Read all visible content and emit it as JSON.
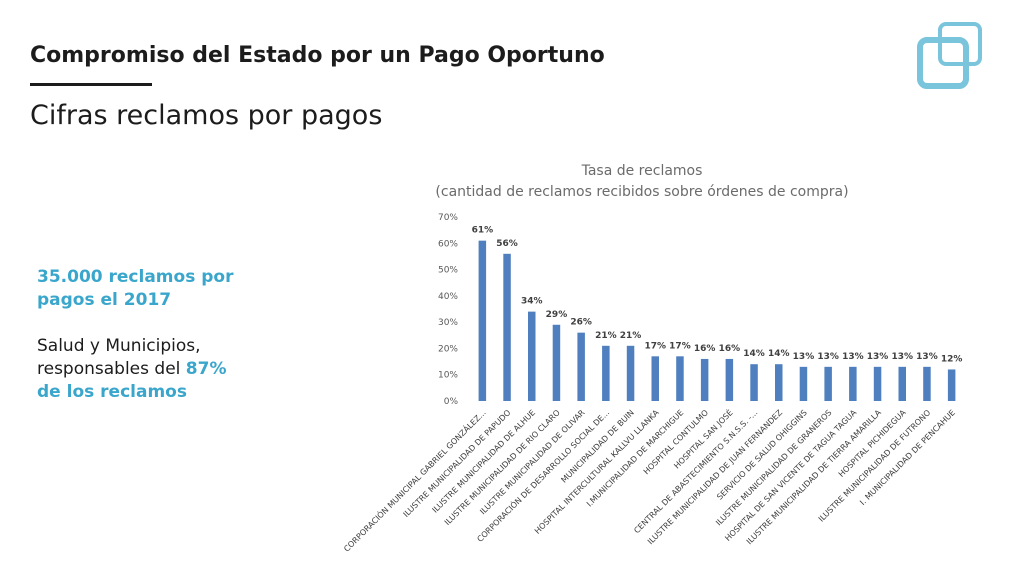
{
  "header": {
    "title": "Compromiso del Estado por un Pago Oportuno",
    "subtitle": "Cifras reclamos por pagos"
  },
  "side": {
    "line1": "35.000 reclamos por",
    "line2": "pagos el 2017",
    "line3": "Salud y Municipios,",
    "line4_prefix": "responsables del ",
    "line4_highlight": "87%",
    "line5": "de los reclamos"
  },
  "colors": {
    "accent": "#3aa6cc",
    "bar": "#4f7fbf",
    "logo": "#7ac4dc"
  },
  "logo": {
    "icon": "overlapping-squares-logo"
  },
  "chart_data": {
    "type": "bar",
    "title": "Tasa de reclamos",
    "subtitle": "(cantidad de reclamos recibidos sobre órdenes de compra)",
    "xlabel": "",
    "ylabel": "",
    "ylim": [
      0,
      70
    ],
    "yticks": [
      "0%",
      "10%",
      "20%",
      "30%",
      "40%",
      "50%",
      "60%",
      "70%"
    ],
    "grid": false,
    "categories": [
      "CORPORACIÓN MUNICIPAL GABRIEL GONZÁLEZ...",
      "ILUSTRE MUNICIPALIDAD DE PAPUDO",
      "ILUSTRE MUNICIPALIDAD DE ALHUE",
      "ILUSTRE MUNICIPALIDAD DE RIO CLARO",
      "ILUSTRE MUNICIPALIDAD DE OLIVAR",
      "CORPORACIÓN DE DESARROLLO SOCIAL DE...",
      "MUNICIPALIDAD DE BUIN",
      "HOSPITAL INTERCULTURAL KALLVU LLANKA",
      "I.MUNICIPALIDAD DE MARCHIGUE",
      "HOSPITAL CONTULMO",
      "HOSPITAL SAN JOSÉ",
      "CENTRAL DE ABASTECIMIENTO S.N.S.S. -...",
      "ILUSTRE MUNICIPALIDAD DE JUAN FERNANDEZ",
      "SERVICIO DE SALUD OHIGGINS",
      "ILUSTRE MUNICIPALIDAD DE GRANEROS",
      "HOSPITAL DE SAN VICENTE DE TAGUA TAGUA",
      "ILUSTRE MUNICIPALIDAD DE TIERRA AMARILLA",
      "HOSPITAL PICHIDEGUA",
      "ILUSTRE MUNICIPALIDAD DE FUTRONO",
      "I. MUNICIPALIDAD DE PENCAHUE"
    ],
    "values": [
      61,
      56,
      34,
      29,
      26,
      21,
      21,
      17,
      17,
      16,
      16,
      14,
      14,
      13,
      13,
      13,
      13,
      13,
      13,
      12
    ],
    "data_labels": [
      "61%",
      "56%",
      "34%",
      "29%",
      "26%",
      "21%",
      "21%",
      "17%",
      "17%",
      "16%",
      "16%",
      "14%",
      "14%",
      "13%",
      "13%",
      "13%",
      "13%",
      "13%",
      "13%",
      "12%"
    ]
  }
}
